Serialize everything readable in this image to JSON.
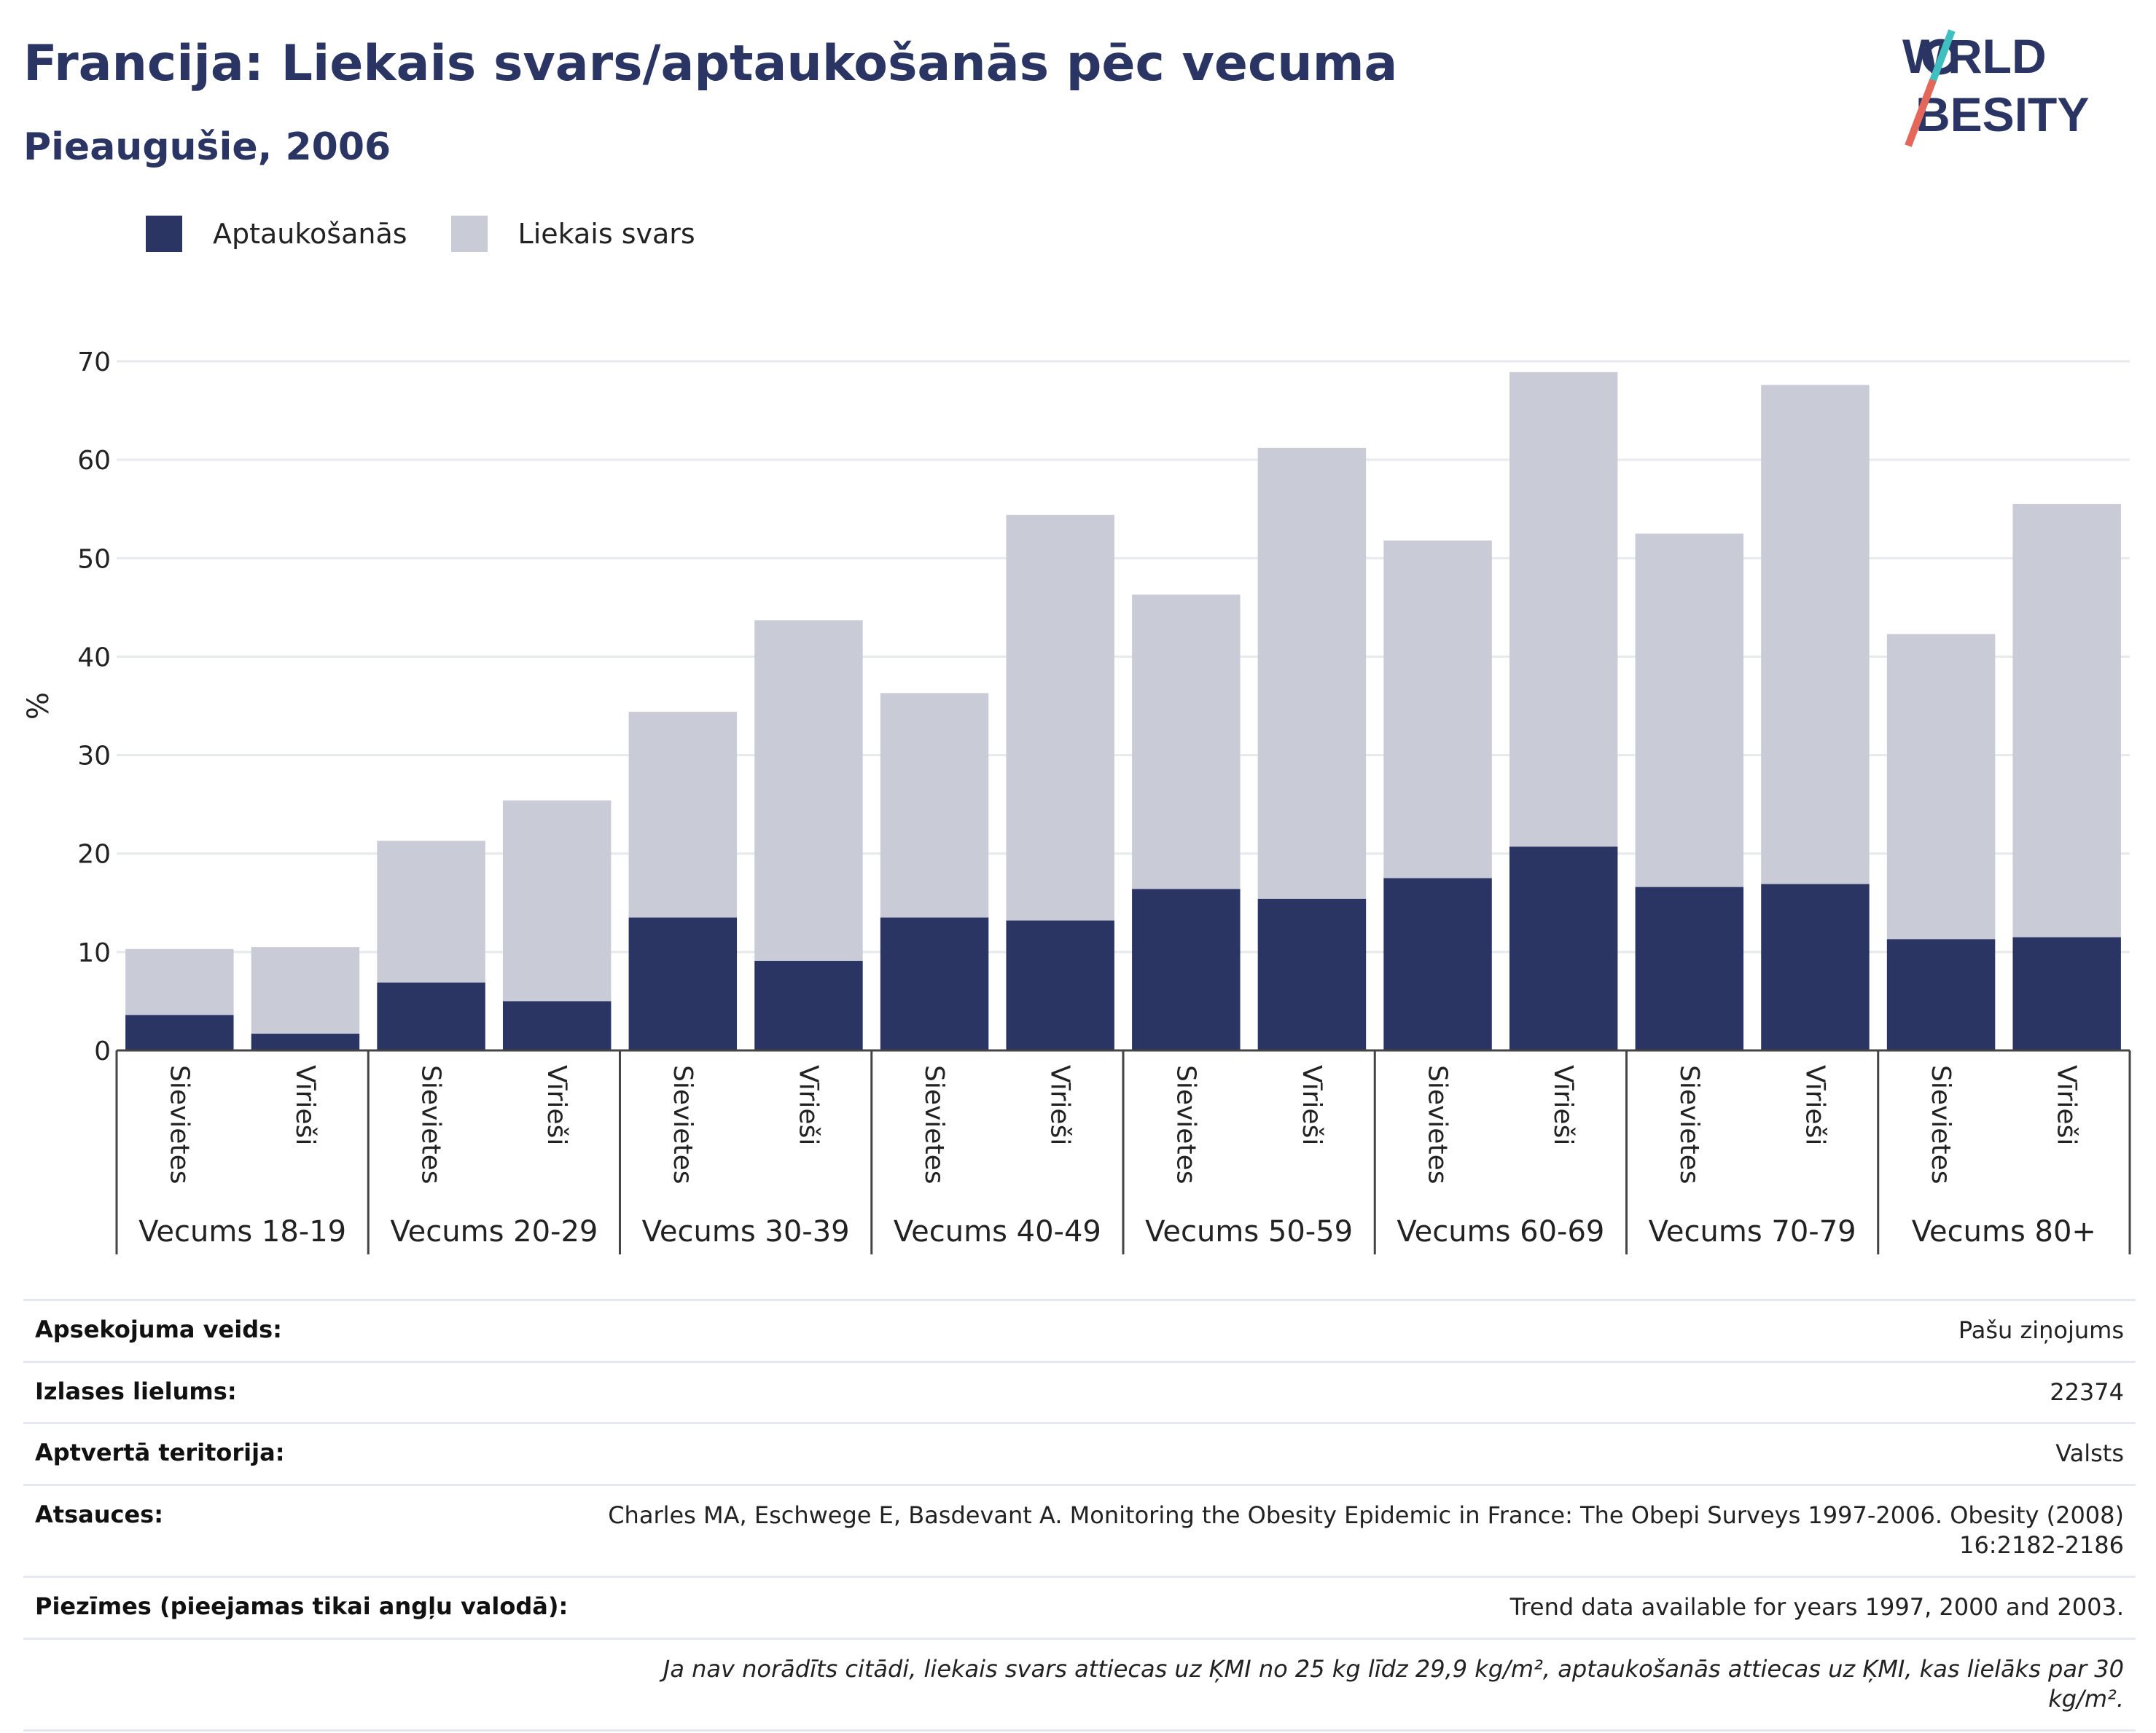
{
  "header": {
    "title": "Francija: Liekais svars/aptaukošanās pēc vecuma",
    "subtitle": "Pieaugušie, 2006"
  },
  "logo": {
    "line1": "WORLD",
    "line2": "OBESITY"
  },
  "legend": [
    {
      "label": "Aptaukošanās",
      "color": "#2a3563"
    },
    {
      "label": "Liekais svars",
      "color": "#c9cbd7"
    }
  ],
  "chart_data": {
    "type": "bar",
    "stacked": true,
    "ylabel": "%",
    "ylim": [
      0,
      70
    ],
    "yticks": [
      0,
      10,
      20,
      30,
      40,
      50,
      60,
      70
    ],
    "grid": true,
    "legend_position": "top-left",
    "groups": [
      "Vecums 18-19",
      "Vecums 20-29",
      "Vecums 30-39",
      "Vecums 40-49",
      "Vecums 50-59",
      "Vecums 60-69",
      "Vecums 70-79",
      "Vecums 80+"
    ],
    "subcategories": [
      "Sievietes",
      "Vīrieši"
    ],
    "series": [
      {
        "name": "Aptaukošanās",
        "color": "#2a3563",
        "values": [
          3.6,
          1.7,
          6.9,
          5.0,
          13.5,
          9.1,
          13.5,
          13.2,
          16.4,
          15.4,
          17.5,
          20.7,
          16.6,
          16.9,
          11.3,
          11.5
        ]
      },
      {
        "name": "Liekais svars",
        "color": "#c9cbd7",
        "values": [
          6.7,
          8.8,
          14.4,
          20.4,
          20.9,
          34.6,
          22.8,
          41.2,
          29.9,
          45.8,
          34.3,
          48.2,
          35.9,
          50.7,
          31.0,
          44.0
        ]
      }
    ]
  },
  "info": [
    {
      "label": "Apsekojuma veids:",
      "value": "Pašu ziņojums"
    },
    {
      "label": "Izlases lielums:",
      "value": "22374"
    },
    {
      "label": "Aptvertā teritorija:",
      "value": "Valsts"
    },
    {
      "label": "Atsauces:",
      "value": "Charles MA, Eschwege E, Basdevant A. Monitoring the Obesity Epidemic in France: The Obepi Surveys 1997-2006. Obesity (2008) 16:2182-2186"
    },
    {
      "label": "Piezīmes (pieejamas tikai angļu valodā):",
      "value": "Trend data available for years 1997, 2000 and 2003."
    },
    {
      "label": "",
      "value": "Ja nav norādīts citādi, liekais svars attiecas uz ĶMI no 25 kg līdz 29,9 kg/m², aptaukošanās attiecas uz ĶMI, kas lielāks par 30 kg/m²."
    }
  ]
}
